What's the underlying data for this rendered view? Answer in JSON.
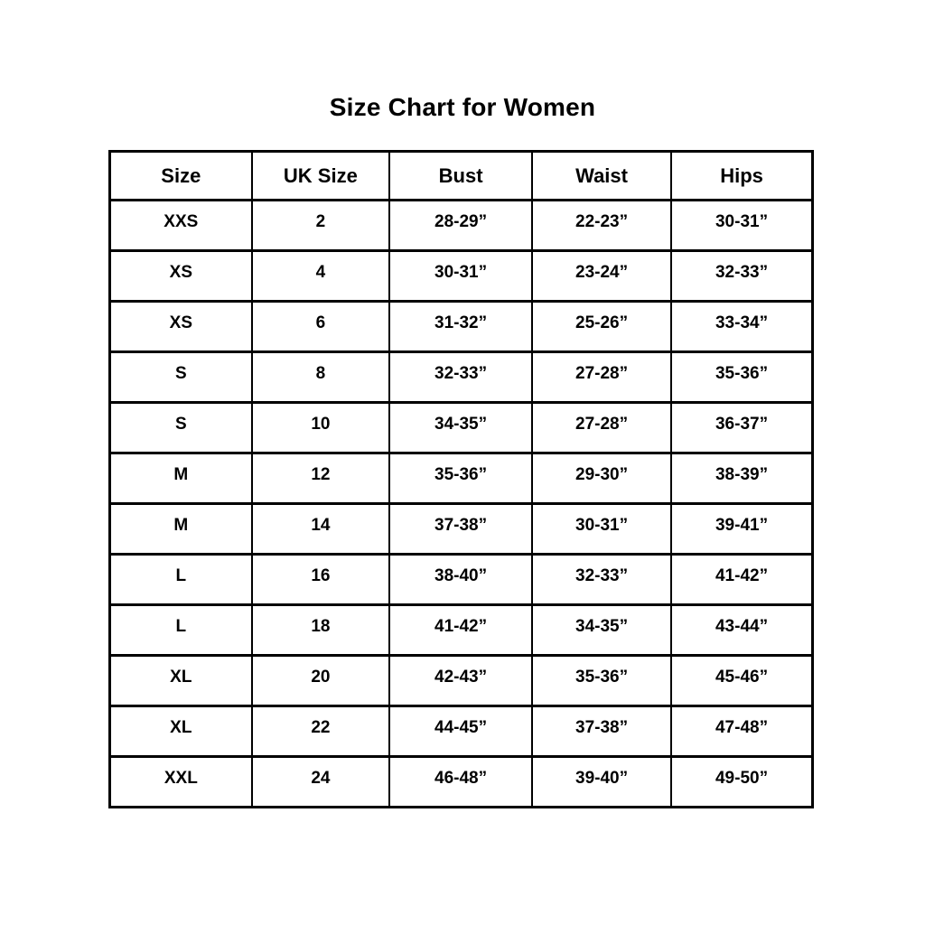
{
  "page": {
    "background_color": "#ffffff",
    "text_color": "#000000",
    "border_color": "#000000"
  },
  "chart_data": {
    "type": "table",
    "title": "Size Chart for Women",
    "columns": [
      "Size",
      "UK Size",
      "Bust",
      "Waist",
      "Hips"
    ],
    "rows": [
      [
        "XXS",
        "2",
        "28-29”",
        "22-23”",
        "30-31”"
      ],
      [
        "XS",
        "4",
        "30-31”",
        "23-24”",
        "32-33”"
      ],
      [
        "XS",
        "6",
        "31-32”",
        "25-26”",
        "33-34”"
      ],
      [
        "S",
        "8",
        "32-33”",
        "27-28”",
        "35-36”"
      ],
      [
        "S",
        "10",
        "34-35”",
        "27-28”",
        "36-37”"
      ],
      [
        "M",
        "12",
        "35-36”",
        "29-30”",
        "38-39”"
      ],
      [
        "M",
        "14",
        "37-38”",
        "30-31”",
        "39-41”"
      ],
      [
        "L",
        "16",
        "38-40”",
        "32-33”",
        "41-42”"
      ],
      [
        "L",
        "18",
        "41-42”",
        "34-35”",
        "43-44”"
      ],
      [
        "XL",
        "20",
        "42-43”",
        "35-36”",
        "45-46”"
      ],
      [
        "XL",
        "22",
        "44-45”",
        "37-38”",
        "47-48”"
      ],
      [
        "XXL",
        "24",
        "46-48”",
        "39-40”",
        "49-50”"
      ]
    ],
    "layout": {
      "grid": true,
      "units": "inches",
      "header_row": true
    }
  }
}
